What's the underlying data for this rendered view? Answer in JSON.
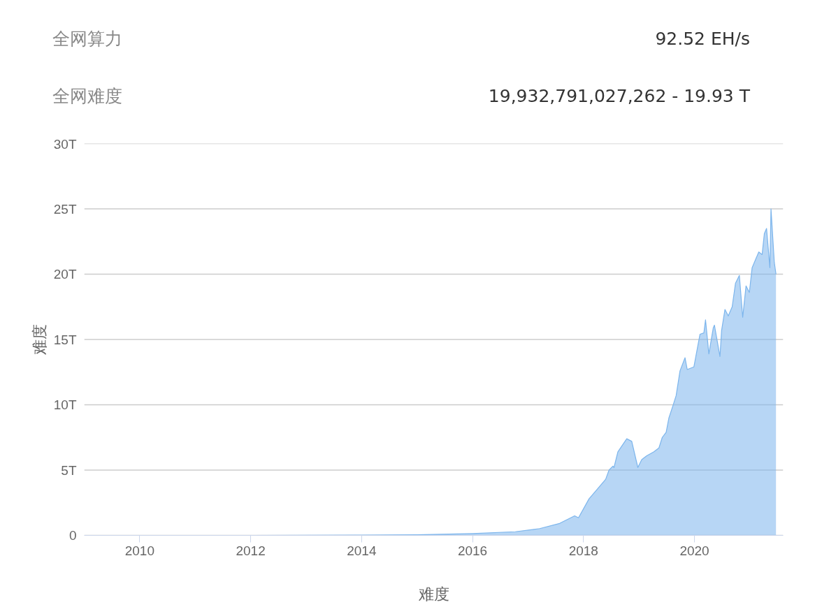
{
  "chart_data": {
    "type": "area",
    "xlabel": "难度",
    "ylabel": "难度",
    "annotations": [
      "全网算力",
      "92.52 EH/s",
      "全网难度",
      "19,932,791,027,262 - 19.93 T"
    ],
    "x": [
      2009.05,
      2012,
      2014,
      2015,
      2016,
      2016.77,
      2017.21,
      2017.57,
      2017.84,
      2017.91,
      2018.1,
      2018.24,
      2018.4,
      2018.46,
      2018.53,
      2018.55,
      2018.62,
      2018.78,
      2018.87,
      2018.98,
      2019.05,
      2019.14,
      2019.27,
      2019.36,
      2019.42,
      2019.49,
      2019.54,
      2019.61,
      2019.67,
      2019.74,
      2019.83,
      2019.87,
      2019.99,
      2020.1,
      2020.17,
      2020.2,
      2020.26,
      2020.34,
      2020.36,
      2020.46,
      2020.49,
      2020.55,
      2020.61,
      2020.68,
      2020.74,
      2020.81,
      2020.87,
      2020.93,
      2020.99,
      2021.04,
      2021.11,
      2021.16,
      2021.22,
      2021.26,
      2021.3,
      2021.36,
      2021.38,
      2021.44,
      2021.47
    ],
    "series": [
      {
        "color": "#7cb5ec",
        "values": [
          0,
          0,
          0.02,
          0.05,
          0.14,
          0.28,
          0.52,
          0.92,
          1.5,
          1.35,
          2.8,
          3.5,
          4.3,
          5.0,
          5.3,
          5.2,
          6.4,
          7.4,
          7.2,
          5.2,
          5.8,
          6.1,
          6.4,
          6.7,
          7.5,
          7.9,
          9.0,
          9.9,
          10.7,
          12.6,
          13.6,
          12.7,
          12.9,
          15.4,
          15.5,
          16.5,
          13.9,
          15.9,
          16.1,
          13.7,
          15.7,
          17.3,
          16.8,
          17.5,
          19.3,
          19.9,
          16.7,
          19.1,
          18.6,
          20.5,
          21.2,
          21.7,
          21.5,
          23.1,
          23.5,
          20.5,
          25.0,
          20.9,
          20.0
        ]
      }
    ],
    "xlim": [
      2009,
      2021.6
    ],
    "ylim": [
      0,
      30
    ],
    "xticks": [
      2010,
      2012,
      2014,
      2016,
      2018,
      2020
    ],
    "yticks": [
      0,
      {
        "value": 5,
        "label": "5T"
      },
      {
        "value": 10,
        "label": "10T"
      },
      {
        "value": 15,
        "label": "15T"
      },
      {
        "value": 20,
        "label": "20T"
      },
      {
        "value": 25,
        "label": "25T"
      },
      {
        "value": 30,
        "label": "30T"
      }
    ],
    "grid": "y",
    "marker": "none",
    "line_style": "solid"
  }
}
